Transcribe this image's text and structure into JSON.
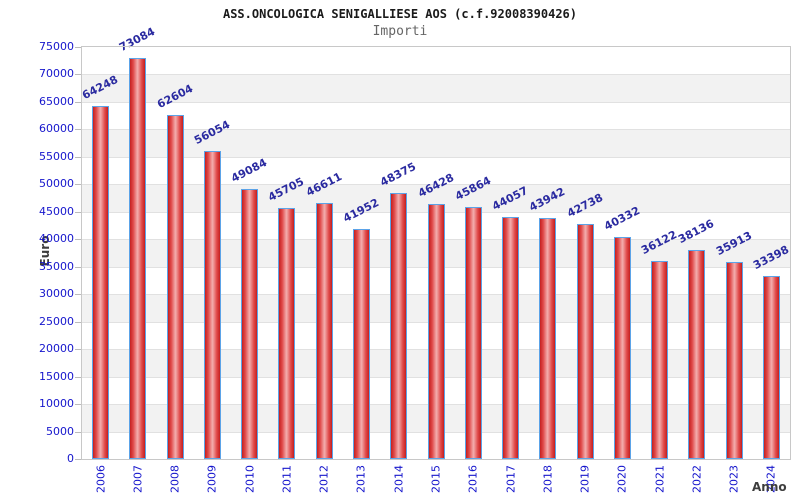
{
  "chart_data": {
    "type": "bar",
    "title": "ASS.ONCOLOGICA SENIGALLIESE AOS (c.f.92008390426)",
    "subtitle": "Importi",
    "xlabel": "Anno",
    "ylabel": "Euro",
    "categories": [
      "2006",
      "2007",
      "2008",
      "2009",
      "2010",
      "2011",
      "2012",
      "2013",
      "2014",
      "2015",
      "2016",
      "2017",
      "2018",
      "2019",
      "2020",
      "2021",
      "2022",
      "2023",
      "2024"
    ],
    "values": [
      64248,
      73084,
      62604,
      56054,
      49084,
      45705,
      46611,
      41952,
      48375,
      46428,
      45864,
      44057,
      43942,
      42738,
      40332,
      36122,
      38136,
      35913,
      33398
    ],
    "ylim": [
      0,
      75000
    ],
    "ytick_step": 5000,
    "grid": true,
    "legend": false,
    "value_labels_shown": true,
    "colors": {
      "title": "#1a1a1a",
      "subtitle": "#666666",
      "tick_label": "#1515cc",
      "value_label": "#2a2aa0",
      "axis_title": "#3d3d3d",
      "bar_edge_stroke": "#5ba3e8",
      "bar_red_dark": "#c51f1f",
      "bar_red_mid": "#e04b4b",
      "bar_red_light": "#f2a8a8",
      "band_light": "#ffffff",
      "band_dark": "#f2f2f2",
      "gridline": "#e1e1e1",
      "plot_border": "#c8c8c8",
      "tick_mark": "#bbbbbb"
    }
  }
}
